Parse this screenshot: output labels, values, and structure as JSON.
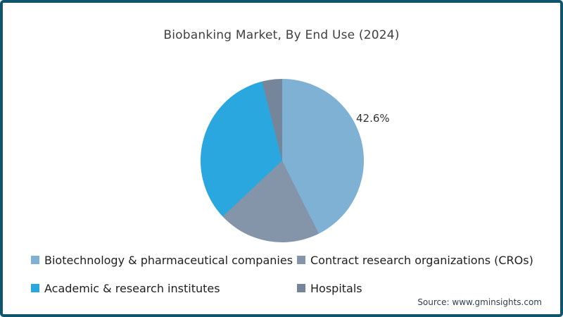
{
  "title": "Biobanking Market, By End Use (2024)",
  "source_note": "Source: www.gminsights.com",
  "colors": {
    "frame_border": "#11546D",
    "background": "#ffffff",
    "title_text": "#404040",
    "legend_text": "#1E1E1E",
    "source_text": "#2F4050"
  },
  "chart_data": {
    "type": "pie",
    "title": "Biobanking Market, By End Use (2024)",
    "start_angle_deg": 0,
    "direction": "clockwise",
    "legend_position": "bottom",
    "series": [
      {
        "name": "Biotechnology & pharmaceutical companies",
        "value": 42.6,
        "color": "#7EB1D3"
      },
      {
        "name": "Contract research organizations (CROs)",
        "value": 20.4,
        "color": "#8595A9"
      },
      {
        "name": "Academic & research institutes",
        "value": 33.0,
        "color": "#2BA7E0"
      },
      {
        "name": "Hospitals",
        "value": 4.0,
        "color": "#75859A"
      }
    ],
    "data_labels": [
      {
        "series": "Biotechnology & pharmaceutical companies",
        "text": "42.6%",
        "position": "outside-upper-right"
      }
    ]
  }
}
